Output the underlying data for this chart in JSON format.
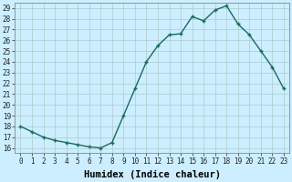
{
  "x": [
    0,
    1,
    2,
    3,
    4,
    5,
    6,
    7,
    8,
    9,
    10,
    11,
    12,
    13,
    14,
    15,
    16,
    17,
    18,
    19,
    20,
    21,
    22,
    23
  ],
  "y": [
    18.0,
    17.5,
    17.0,
    16.7,
    16.5,
    16.3,
    16.1,
    16.0,
    16.5,
    19.0,
    21.5,
    24.0,
    25.5,
    26.5,
    26.6,
    28.2,
    27.8,
    28.8,
    29.2,
    27.5,
    26.5,
    25.0,
    23.5,
    21.5
  ],
  "xlabel": "Humidex (Indice chaleur)",
  "line_color": "#1a6b5a",
  "marker": "+",
  "bg_color": "#cceeff",
  "grid_color": "#aacccc",
  "ylim_min": 15.5,
  "ylim_max": 29.5,
  "xlim_min": -0.5,
  "xlim_max": 23.5,
  "yticks": [
    16,
    17,
    18,
    19,
    20,
    21,
    22,
    23,
    24,
    25,
    26,
    27,
    28,
    29
  ],
  "xticks": [
    0,
    1,
    2,
    3,
    4,
    5,
    6,
    7,
    8,
    9,
    10,
    11,
    12,
    13,
    14,
    15,
    16,
    17,
    18,
    19,
    20,
    21,
    22,
    23
  ],
  "tick_fontsize": 5.5,
  "xlabel_fontsize": 7.5,
  "markersize": 3.5,
  "linewidth": 1.0
}
